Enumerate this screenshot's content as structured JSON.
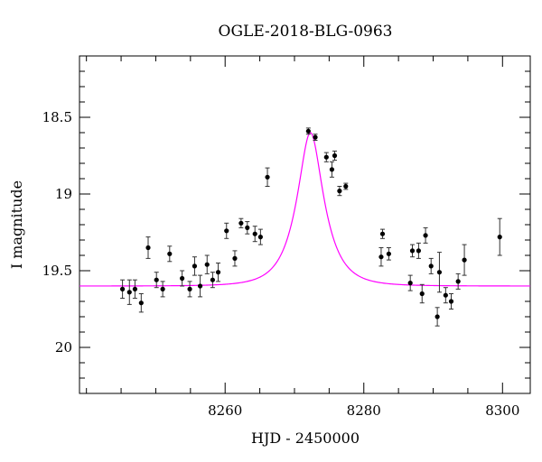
{
  "chart_data": {
    "type": "scatter",
    "title": "OGLE-2018-BLG-0963",
    "xlabel": "HJD - 2450000",
    "ylabel": "I magnitude",
    "xlim": [
      8239,
      8304
    ],
    "ylim": [
      20.3,
      18.1
    ],
    "y_inverted": true,
    "grid": false,
    "legend": "none",
    "x_ticks": [
      8260,
      8280,
      8300
    ],
    "y_ticks": [
      18.5,
      19,
      19.5,
      20
    ],
    "y_tick_labels": [
      "18.5",
      "19",
      "19.5",
      "20"
    ],
    "colors": {
      "data": "#000000",
      "model": "#ff00ff"
    },
    "model": {
      "t0": 8272.3,
      "baseline": 19.6,
      "peak": 18.6,
      "tE": 3.6
    },
    "series": [
      {
        "kind": "points",
        "x": [
          8245.2,
          8246.2,
          8247.0,
          8247.9,
          8248.9,
          8250.1,
          8251.0,
          8252.0,
          8253.8,
          8254.9,
          8255.6,
          8256.4,
          8257.4,
          8258.2,
          8259.0,
          8260.2,
          8261.4,
          8262.3,
          8263.2,
          8264.3,
          8265.1,
          8266.1,
          8272.0,
          8273.0,
          8274.6,
          8275.4,
          8275.8,
          8276.5,
          8277.4,
          8282.5,
          8282.7,
          8283.6,
          8286.7,
          8287.0,
          8287.9,
          8288.4,
          8288.9,
          8289.7,
          8290.6,
          8290.9,
          8291.8,
          8292.6,
          8293.6,
          8294.5,
          8299.6
        ],
        "y": [
          19.62,
          19.64,
          19.62,
          19.71,
          19.35,
          19.56,
          19.62,
          19.39,
          19.55,
          19.62,
          19.47,
          19.6,
          19.46,
          19.56,
          19.51,
          19.24,
          19.42,
          19.19,
          19.22,
          19.26,
          19.28,
          18.89,
          18.59,
          18.63,
          18.76,
          18.84,
          18.75,
          18.98,
          18.95,
          19.41,
          19.26,
          19.39,
          19.58,
          19.37,
          19.37,
          19.65,
          19.27,
          19.47,
          19.8,
          19.51,
          19.66,
          19.7,
          19.57,
          19.43,
          19.28
        ],
        "err": [
          0.06,
          0.08,
          0.06,
          0.06,
          0.07,
          0.05,
          0.05,
          0.05,
          0.05,
          0.05,
          0.06,
          0.07,
          0.06,
          0.05,
          0.06,
          0.05,
          0.05,
          0.03,
          0.04,
          0.05,
          0.05,
          0.06,
          0.02,
          0.02,
          0.03,
          0.05,
          0.03,
          0.03,
          0.02,
          0.06,
          0.03,
          0.04,
          0.05,
          0.04,
          0.05,
          0.06,
          0.05,
          0.05,
          0.06,
          0.13,
          0.05,
          0.05,
          0.05,
          0.1,
          0.12
        ]
      }
    ]
  }
}
